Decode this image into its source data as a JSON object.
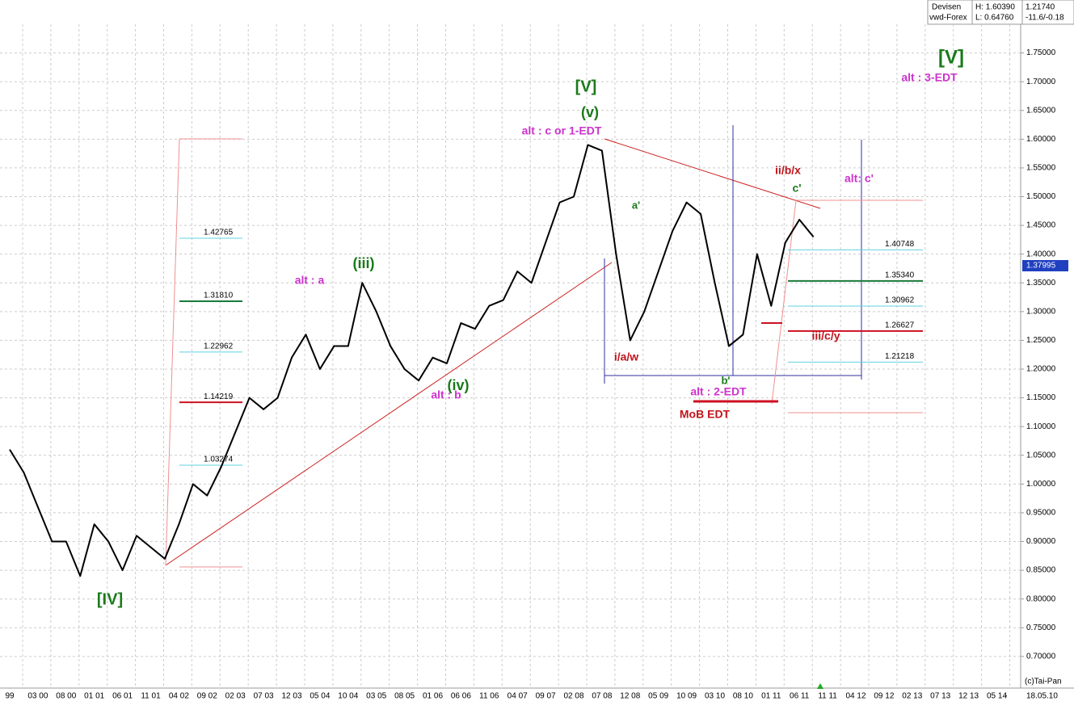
{
  "chart_data": {
    "type": "line",
    "header": {
      "market": "Devisen",
      "source": "vwd-Forex",
      "high": "H: 1.60390",
      "low": "L: 0.64760",
      "last": "1.21740",
      "change": "-11.6/-0.18"
    },
    "categories": [
      "99",
      null,
      "03 00",
      null,
      "08 00",
      null,
      "01 01",
      null,
      "06 01",
      null,
      "11 01",
      null,
      "04 02",
      null,
      "09 02",
      null,
      "02 03",
      null,
      "07 03",
      null,
      "12 03",
      null,
      "05 04",
      null,
      "10 04",
      null,
      "03 05",
      null,
      "08 05",
      null,
      "01 06",
      null,
      "06 06",
      null,
      "11 06",
      null,
      "04 07",
      null,
      "09 07",
      null,
      "02 08",
      null,
      "07 08",
      null,
      "12 08",
      null,
      "05 09",
      null,
      "10 09",
      null,
      "03 10",
      null,
      "08 10",
      null,
      "01 11",
      null,
      "06 11",
      null,
      "11 11",
      null,
      "04 12",
      null,
      "09 12",
      null,
      "02 13",
      null,
      "07 13",
      null,
      "12 13",
      null,
      "05 14",
      null
    ],
    "series": [
      {
        "color": "#000000",
        "values": [
          1.06,
          1.02,
          0.96,
          0.9,
          0.9,
          0.84,
          0.93,
          0.9,
          0.85,
          0.91,
          0.89,
          0.87,
          0.93,
          1.0,
          0.98,
          1.03,
          1.09,
          1.15,
          1.13,
          1.15,
          1.22,
          1.26,
          1.2,
          1.24,
          1.24,
          1.35,
          1.3,
          1.24,
          1.2,
          1.18,
          1.22,
          1.21,
          1.28,
          1.27,
          1.31,
          1.32,
          1.37,
          1.35,
          1.42,
          1.49,
          1.5,
          1.59,
          1.58,
          1.4,
          1.25,
          1.3,
          1.37,
          1.44,
          1.49,
          1.47,
          1.35,
          1.24,
          1.26,
          1.4,
          1.31,
          1.42,
          1.46,
          1.43,
          null,
          null,
          null,
          null,
          null,
          null,
          null,
          null,
          null,
          null,
          null,
          null,
          null,
          null
        ]
      }
    ],
    "last_price": "1.37995",
    "ylim": [
      0.645,
      1.8
    ],
    "yticks": [
      {
        "value": 0.7,
        "label": "0.70000"
      },
      {
        "value": 0.75,
        "label": "0.75000"
      },
      {
        "value": 0.8,
        "label": "0.80000"
      },
      {
        "value": 0.85,
        "label": "0.85000"
      },
      {
        "value": 0.9,
        "label": "0.90000"
      },
      {
        "value": 0.95,
        "label": "0.95000"
      },
      {
        "value": 1.0,
        "label": "1.00000"
      },
      {
        "value": 1.05,
        "label": "1.05000"
      },
      {
        "value": 1.1,
        "label": "1.10000"
      },
      {
        "value": 1.15,
        "label": "1.15000"
      },
      {
        "value": 1.2,
        "label": "1.20000"
      },
      {
        "value": 1.25,
        "label": "1.25000"
      },
      {
        "value": 1.3,
        "label": "1.30000"
      },
      {
        "value": 1.35,
        "label": "1.35000"
      },
      {
        "value": 1.4,
        "label": "1.40000"
      },
      {
        "value": 1.45,
        "label": "1.45000"
      },
      {
        "value": 1.5,
        "label": "1.50000"
      },
      {
        "value": 1.55,
        "label": "1.55000"
      },
      {
        "value": 1.6,
        "label": "1.60000"
      },
      {
        "value": 1.65,
        "label": "1.65000"
      },
      {
        "value": 1.7,
        "label": "1.70000"
      },
      {
        "value": 1.75,
        "label": "1.75000"
      }
    ],
    "grid": true,
    "left_levels": {
      "values": [
        1.42765,
        1.3181,
        1.22962,
        1.14219,
        1.03274
      ],
      "value_labels": [
        "1.42765",
        "1.31810",
        "1.22962",
        "1.14219",
        "1.03274"
      ],
      "colors": [
        "#5fd3e0",
        "#1a7a3a",
        "#5fd3e0",
        "#cc1122",
        "#5fd3e0"
      ]
    },
    "right_levels": {
      "values": [
        1.40748,
        1.3534,
        1.30962,
        1.26627,
        1.21218
      ],
      "value_labels": [
        "1.40748",
        "1.35340",
        "1.30962",
        "1.26627",
        "1.21218"
      ],
      "colors": [
        "#5fd3e0",
        "#1a7a3a",
        "#5fd3e0",
        "#cc1122",
        "#5fd3e0"
      ]
    },
    "annotations": [
      {
        "text": "[V]",
        "color": "#1a7a1a"
      },
      {
        "text": "(v)",
        "color": "#1a7a1a"
      },
      {
        "text": "alt : c or 1-EDT",
        "color": "#cc33cc"
      },
      {
        "text": "(iii)",
        "color": "#1a7a1a"
      },
      {
        "text": "alt : a",
        "color": "#cc33cc"
      },
      {
        "text": "(iv)",
        "color": "#1a7a1a"
      },
      {
        "text": "alt : b",
        "color": "#cc33cc"
      },
      {
        "text": "[IV]",
        "color": "#1a7a1a"
      },
      {
        "text": "a'",
        "color": "#1a7a1a"
      },
      {
        "text": "i/a/w",
        "color": "#c0141c"
      },
      {
        "text": "b'",
        "color": "#1a7a1a"
      },
      {
        "text": "alt : 2-EDT",
        "color": "#cc33cc"
      },
      {
        "text": "MoB EDT",
        "color": "#c0141c"
      },
      {
        "text": "ii/b/x",
        "color": "#c0141c"
      },
      {
        "text": "c'",
        "color": "#1a7a1a"
      },
      {
        "text": "alt: c'",
        "color": "#cc33cc"
      },
      {
        "text": "iii/c/y",
        "color": "#c0141c"
      },
      {
        "text": "[V]",
        "color": "#1a7a1a"
      },
      {
        "text": "alt : 3-EDT",
        "color": "#cc33cc"
      }
    ],
    "copyright": "(c)Tai-Pan",
    "axis_end": "-",
    "date": "18.05.10"
  }
}
